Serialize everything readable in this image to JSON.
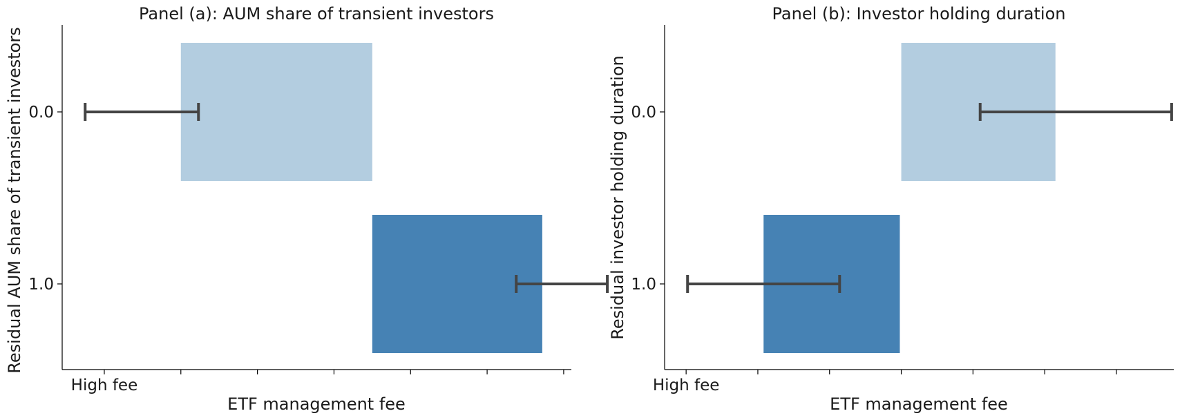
{
  "chart_data": [
    {
      "type": "bar",
      "orientation": "horizontal",
      "title": "Panel (a): AUM share of transient investors",
      "xlabel": "ETF management fee",
      "ylabel": "Residual AUM share of transient investors",
      "categories": [
        "0.0",
        "1.0"
      ],
      "x_tick_labels": [
        "High fee",
        "",
        "",
        "",
        "",
        "",
        ""
      ],
      "bars": [
        {
          "category": "0.0",
          "start": 1.0,
          "end": 3.5,
          "color": "#b3cde0"
        },
        {
          "category": "1.0",
          "start": 3.5,
          "end": 5.72,
          "color": "#4682b4"
        }
      ],
      "error_bars": [
        {
          "category": "0.0",
          "low": -0.25,
          "high": 1.23
        },
        {
          "category": "1.0",
          "low": 5.38,
          "high": 6.57
        }
      ],
      "xlim": [
        -0.55,
        6.1
      ],
      "grid": false
    },
    {
      "type": "bar",
      "orientation": "horizontal",
      "title": "Panel (b): Investor holding duration",
      "xlabel": "ETF management fee",
      "ylabel": "Residual investor holding duration",
      "categories": [
        "0.0",
        "1.0"
      ],
      "x_tick_labels": [
        "High fee",
        "",
        "",
        "",
        "",
        "",
        ""
      ],
      "bars": [
        {
          "category": "0.0",
          "start": 3.0,
          "end": 5.15,
          "color": "#b3cde0"
        },
        {
          "category": "1.0",
          "start": 1.08,
          "end": 2.98,
          "color": "#4682b4"
        }
      ],
      "error_bars": [
        {
          "category": "0.0",
          "low": 4.1,
          "high": 6.77
        },
        {
          "category": "1.0",
          "low": 0.02,
          "high": 2.14
        }
      ],
      "xlim": [
        -0.3,
        6.8
      ],
      "grid": false
    }
  ]
}
